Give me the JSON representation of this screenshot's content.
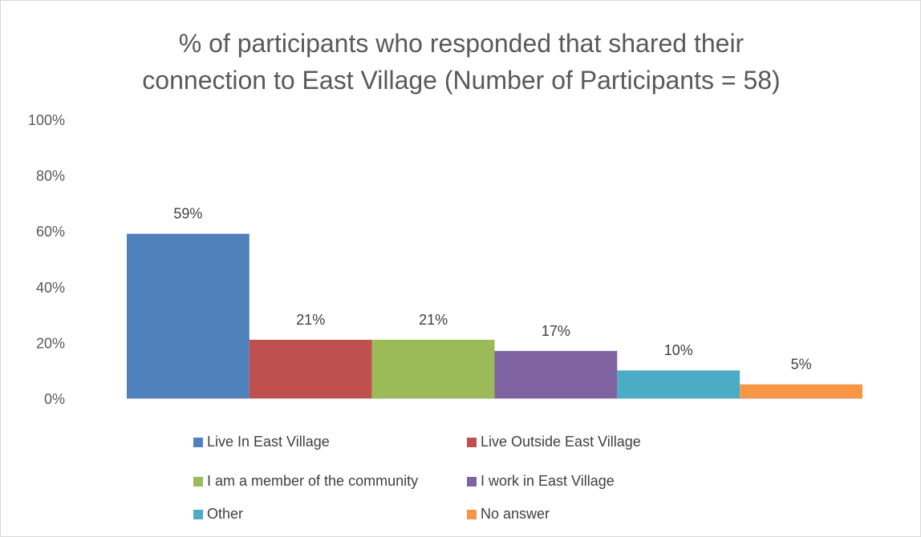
{
  "chart_data": {
    "type": "bar",
    "title_lines": [
      "% of participants who responded that shared their",
      "connection to East Village (Number of Participants = 58)"
    ],
    "ylim": [
      0,
      100
    ],
    "y_ticks": [
      "0%",
      "20%",
      "40%",
      "60%",
      "80%",
      "100%"
    ],
    "y_tick_values": [
      0,
      20,
      40,
      60,
      80,
      100
    ],
    "grid": false,
    "legend_position": "bottom",
    "series": [
      {
        "name": "Live In East Village",
        "value": 59,
        "label": "59%",
        "color": "#4f81bd"
      },
      {
        "name": "Live Outside East Village",
        "value": 21,
        "label": "21%",
        "color": "#c0504d"
      },
      {
        "name": "I am a member of the community",
        "value": 21,
        "label": "21%",
        "color": "#9bbb59"
      },
      {
        "name": "I work in East Village",
        "value": 17,
        "label": "17%",
        "color": "#8064a2"
      },
      {
        "name": "Other",
        "value": 10,
        "label": "10%",
        "color": "#4bacc6"
      },
      {
        "name": "No answer",
        "value": 5,
        "label": "5%",
        "color": "#f79646"
      }
    ]
  }
}
